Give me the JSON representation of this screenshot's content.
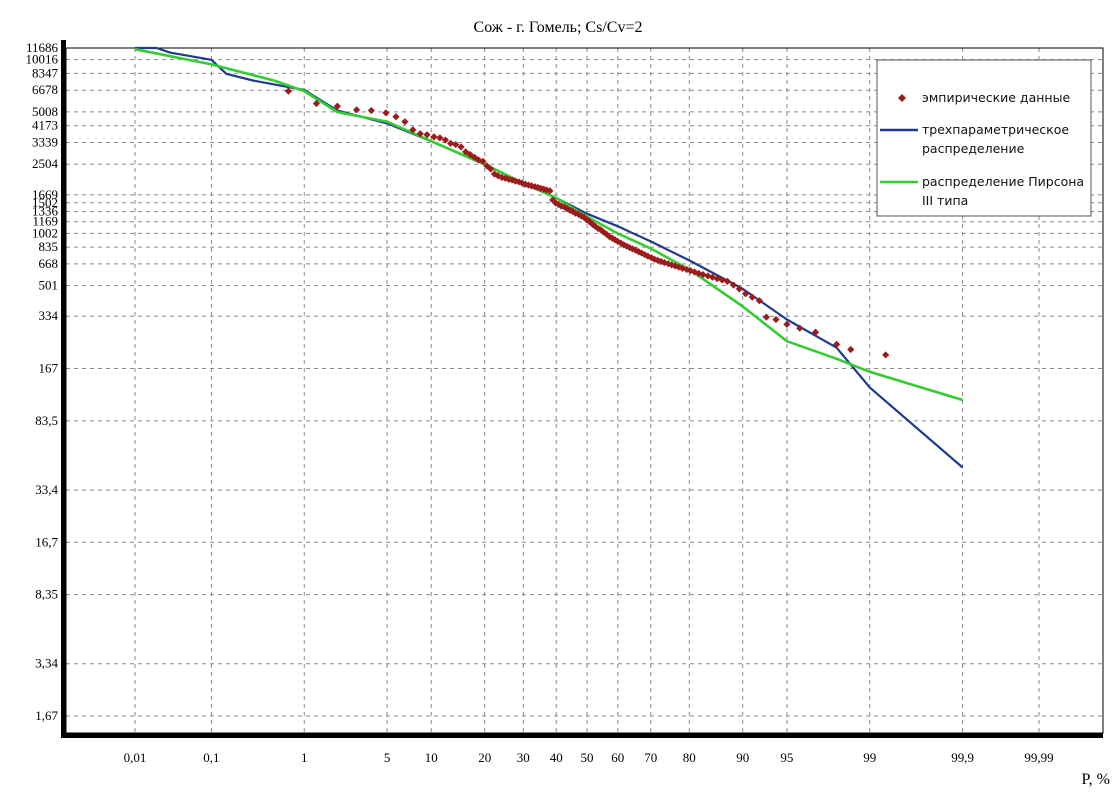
{
  "chart_data": {
    "type": "scatter",
    "title": "Сож - г. Гомель; Cs/Cv=2",
    "xlabel": "P, %",
    "ylabel": "",
    "x_scale": "probability",
    "y_scale": "log",
    "x_ticks": [
      0.01,
      0.1,
      1,
      5,
      10,
      20,
      30,
      40,
      50,
      60,
      70,
      80,
      90,
      95,
      99,
      99.9,
      99.99
    ],
    "x_tick_labels": [
      "0,01",
      "0,1",
      "1",
      "5",
      "10",
      "20",
      "30",
      "40",
      "50",
      "60",
      "70",
      "80",
      "90",
      "95",
      "99",
      "99,9",
      "99,99"
    ],
    "y_ticks": [
      1.67,
      3.34,
      8.35,
      16.7,
      33.4,
      83.5,
      167,
      334,
      501,
      668,
      835,
      1002,
      1169,
      1336,
      1502,
      1669,
      2504,
      3339,
      4173,
      5008,
      6678,
      8347,
      10016,
      11686
    ],
    "y_tick_labels": [
      "1,67",
      "3,34",
      "8,35",
      "16,7",
      "33,4",
      "83,5",
      "167",
      "334",
      "501",
      "668",
      "835",
      "1002",
      "1169",
      "1336",
      "1502",
      "1669",
      "2504",
      "3339",
      "4173",
      "5008",
      "6678",
      "8347",
      "10016",
      "11686"
    ],
    "grid": true,
    "legend_position": "top-right",
    "series": [
      {
        "name": "эмпирические данные",
        "kind": "points",
        "color": "#9b1c1c",
        "points": [
          [
            0.7,
            6600
          ],
          [
            1.3,
            5600
          ],
          [
            2.0,
            5400
          ],
          [
            2.9,
            5150
          ],
          [
            3.8,
            5100
          ],
          [
            4.9,
            4950
          ],
          [
            5.8,
            4700
          ],
          [
            6.7,
            4400
          ],
          [
            7.6,
            3950
          ],
          [
            8.5,
            3750
          ],
          [
            9.4,
            3700
          ],
          [
            10.4,
            3600
          ],
          [
            11.3,
            3550
          ],
          [
            12.2,
            3450
          ],
          [
            13.1,
            3300
          ],
          [
            14.0,
            3250
          ],
          [
            15.0,
            3150
          ],
          [
            15.9,
            2950
          ],
          [
            16.8,
            2850
          ],
          [
            17.7,
            2750
          ],
          [
            18.6,
            2650
          ],
          [
            19.6,
            2600
          ],
          [
            20.5,
            2450
          ],
          [
            21.4,
            2350
          ],
          [
            22.3,
            2200
          ],
          [
            23.2,
            2150
          ],
          [
            24.2,
            2100
          ],
          [
            25.1,
            2080
          ],
          [
            26.0,
            2050
          ],
          [
            26.9,
            2030
          ],
          [
            27.8,
            2000
          ],
          [
            28.8,
            1980
          ],
          [
            29.7,
            1950
          ],
          [
            30.6,
            1920
          ],
          [
            31.5,
            1900
          ],
          [
            32.4,
            1880
          ],
          [
            33.4,
            1860
          ],
          [
            34.3,
            1840
          ],
          [
            35.2,
            1820
          ],
          [
            36.1,
            1800
          ],
          [
            37.0,
            1780
          ],
          [
            38.0,
            1760
          ],
          [
            38.9,
            1560
          ],
          [
            39.8,
            1500
          ],
          [
            40.7,
            1470
          ],
          [
            41.6,
            1440
          ],
          [
            42.6,
            1420
          ],
          [
            43.5,
            1390
          ],
          [
            44.4,
            1360
          ],
          [
            45.3,
            1340
          ],
          [
            46.2,
            1310
          ],
          [
            47.2,
            1290
          ],
          [
            48.1,
            1260
          ],
          [
            49.0,
            1240
          ],
          [
            49.9,
            1200
          ],
          [
            50.8,
            1170
          ],
          [
            51.8,
            1130
          ],
          [
            52.7,
            1100
          ],
          [
            53.6,
            1070
          ],
          [
            54.5,
            1050
          ],
          [
            55.4,
            1020
          ],
          [
            56.4,
            990
          ],
          [
            57.3,
            960
          ],
          [
            58.2,
            940
          ],
          [
            59.1,
            920
          ],
          [
            60.0,
            900
          ],
          [
            61.0,
            880
          ],
          [
            61.9,
            860
          ],
          [
            62.8,
            845
          ],
          [
            63.7,
            830
          ],
          [
            64.6,
            815
          ],
          [
            65.6,
            800
          ],
          [
            66.5,
            785
          ],
          [
            67.4,
            770
          ],
          [
            68.3,
            755
          ],
          [
            69.2,
            740
          ],
          [
            70.2,
            725
          ],
          [
            71.1,
            710
          ],
          [
            72.0,
            700
          ],
          [
            72.9,
            690
          ],
          [
            73.8,
            680
          ],
          [
            74.8,
            670
          ],
          [
            75.7,
            660
          ],
          [
            76.6,
            650
          ],
          [
            77.5,
            640
          ],
          [
            78.4,
            630
          ],
          [
            79.4,
            620
          ],
          [
            80.3,
            610
          ],
          [
            81.2,
            600
          ],
          [
            82.1,
            590
          ],
          [
            83.0,
            580
          ],
          [
            84.0,
            570
          ],
          [
            84.9,
            560
          ],
          [
            85.8,
            550
          ],
          [
            86.7,
            540
          ],
          [
            87.6,
            530
          ],
          [
            88.6,
            505
          ],
          [
            89.5,
            480
          ],
          [
            90.4,
            450
          ],
          [
            91.3,
            430
          ],
          [
            92.2,
            410
          ],
          [
            93.0,
            330
          ],
          [
            94.0,
            320
          ],
          [
            95.0,
            300
          ],
          [
            96.0,
            285
          ],
          [
            97.0,
            270
          ],
          [
            98.0,
            230
          ],
          [
            98.5,
            215
          ],
          [
            99.3,
            200
          ]
        ]
      },
      {
        "name": "трехпараметрическое распределение",
        "kind": "line",
        "color": "#1f3a8f",
        "points": [
          [
            0.01,
            11686
          ],
          [
            0.02,
            11686
          ],
          [
            0.03,
            11000
          ],
          [
            0.1,
            10000
          ],
          [
            0.15,
            8300
          ],
          [
            0.3,
            7600
          ],
          [
            1,
            6700
          ],
          [
            2,
            5100
          ],
          [
            5,
            4300
          ],
          [
            10,
            3400
          ],
          [
            20,
            2500
          ],
          [
            30,
            1950
          ],
          [
            40,
            1600
          ],
          [
            50,
            1300
          ],
          [
            60,
            1100
          ],
          [
            70,
            900
          ],
          [
            80,
            700
          ],
          [
            90,
            480
          ],
          [
            95,
            320
          ],
          [
            98,
            220
          ],
          [
            99,
            130
          ],
          [
            99.9,
            45
          ]
        ]
      },
      {
        "name": "распределение Пирсона III типа",
        "kind": "line",
        "color": "#33cc33",
        "points": [
          [
            0.01,
            11500
          ],
          [
            0.1,
            9400
          ],
          [
            0.5,
            7600
          ],
          [
            1,
            6600
          ],
          [
            2,
            5000
          ],
          [
            5,
            4400
          ],
          [
            10,
            3400
          ],
          [
            20,
            2500
          ],
          [
            30,
            1950
          ],
          [
            40,
            1600
          ],
          [
            50,
            1250
          ],
          [
            60,
            1000
          ],
          [
            70,
            820
          ],
          [
            80,
            620
          ],
          [
            90,
            380
          ],
          [
            95,
            240
          ],
          [
            98,
            190
          ],
          [
            99,
            160
          ],
          [
            99.9,
            110
          ]
        ]
      }
    ]
  },
  "legend": {
    "items": [
      {
        "lines": [
          "эмпирические данные"
        ]
      },
      {
        "lines": [
          "трехпараметрическое",
          "распределение"
        ]
      },
      {
        "lines": [
          "распределение Пирсона",
          "III типа"
        ]
      }
    ]
  }
}
